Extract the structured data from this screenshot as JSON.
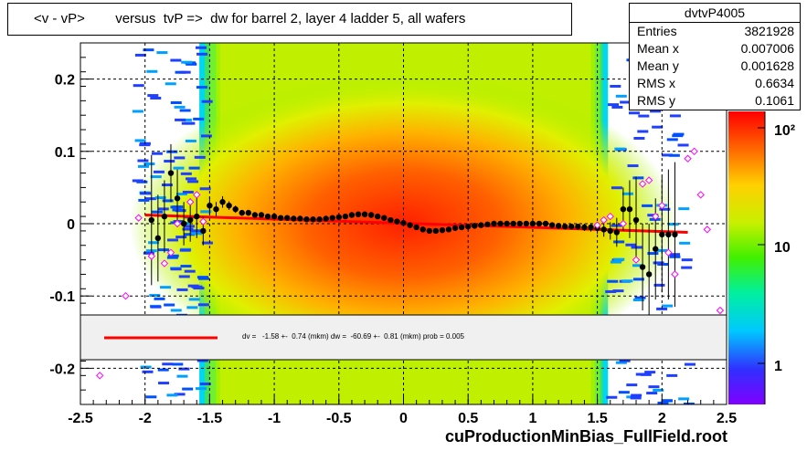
{
  "window": {
    "title": "<v - vP>        versus  tvP =>  dw for barrel 2, layer 4 ladder 5, all wafers",
    "footer": "cuProductionMinBias_FullField.root"
  },
  "stats": {
    "name": "dvtvP4005",
    "rows": [
      {
        "label": "Entries",
        "value": "3821928"
      },
      {
        "label": "Mean x",
        "value": "0.007006"
      },
      {
        "label": "Mean y",
        "value": "0.001628"
      },
      {
        "label": "RMS x",
        "value": "0.6634"
      },
      {
        "label": "RMS y",
        "value": "0.1061"
      }
    ]
  },
  "fit_legend": {
    "text": "dv =   -1.58 +-  0.74 (mkm) dw =  -60.69 +-  0.81 (mkm) prob = 0.005",
    "line_color": "#ff0000"
  },
  "chart_data": {
    "type": "heatmap",
    "title": "<v - vP>        versus  tvP =>  dw for barrel 2, layer 4 ladder 5, all wafers",
    "xlim": [
      -2.5,
      2.5
    ],
    "ylim": [
      -0.25,
      0.25
    ],
    "x_ticks": [
      "-2.5",
      "-2",
      "-1.5",
      "-1",
      "-0.5",
      "0",
      "0.5",
      "1",
      "1.5",
      "2",
      "2.5"
    ],
    "y_ticks": [
      "-0.2",
      "-0.1",
      "0",
      "0.1",
      "0.2"
    ],
    "z_scale": "log",
    "z_ticks": [
      "1",
      "10",
      "10²"
    ],
    "grid": true,
    "profile_black": {
      "x": [
        -1.95,
        -1.9,
        -1.85,
        -1.8,
        -1.75,
        -1.7,
        -1.65,
        -1.6,
        -1.55,
        -1.5,
        -1.45,
        -1.4,
        -1.35,
        -1.3,
        -1.25,
        -1.2,
        -1.15,
        -1.1,
        -1.05,
        -1.0,
        -0.95,
        -0.9,
        -0.85,
        -0.8,
        -0.75,
        -0.7,
        -0.65,
        -0.6,
        -0.55,
        -0.5,
        -0.45,
        -0.4,
        -0.35,
        -0.3,
        -0.25,
        -0.2,
        -0.15,
        -0.1,
        -0.05,
        0.0,
        0.05,
        0.1,
        0.15,
        0.2,
        0.25,
        0.3,
        0.35,
        0.4,
        0.45,
        0.5,
        0.55,
        0.6,
        0.65,
        0.7,
        0.75,
        0.8,
        0.85,
        0.9,
        0.95,
        1.0,
        1.05,
        1.1,
        1.15,
        1.2,
        1.25,
        1.3,
        1.35,
        1.4,
        1.45,
        1.5,
        1.55,
        1.6,
        1.65,
        1.7,
        1.75,
        1.8,
        1.85,
        1.9,
        1.95,
        2.0,
        2.05,
        2.1
      ],
      "y": [
        0.005,
        -0.02,
        0.01,
        0.07,
        0.035,
        0.0,
        0.005,
        0.01,
        -0.01,
        0.025,
        0.02,
        0.03,
        0.025,
        0.02,
        0.015,
        0.015,
        0.012,
        0.012,
        0.01,
        0.01,
        0.008,
        0.008,
        0.007,
        0.007,
        0.006,
        0.006,
        0.006,
        0.007,
        0.008,
        0.009,
        0.01,
        0.012,
        0.013,
        0.013,
        0.012,
        0.01,
        0.008,
        0.005,
        0.003,
        0.001,
        -0.002,
        -0.005,
        -0.008,
        -0.01,
        -0.01,
        -0.009,
        -0.008,
        -0.006,
        -0.005,
        -0.004,
        -0.003,
        -0.002,
        -0.001,
        0.0,
        0.0,
        0.0,
        0.0,
        0.0,
        0.0,
        0.0,
        0.0,
        0.0,
        -0.002,
        -0.003,
        -0.004,
        -0.004,
        -0.004,
        -0.005,
        -0.005,
        -0.006,
        -0.008,
        -0.01,
        -0.012,
        0.02,
        0.02,
        0.005,
        -0.06,
        -0.07,
        -0.035,
        -0.015,
        -0.015,
        -0.015
      ],
      "yerr": [
        0.09,
        0.06,
        0.05,
        0.04,
        0.04,
        0.03,
        0.03,
        0.03,
        0.02,
        0.012,
        0.01,
        0.008,
        0.006,
        0.005,
        0.004,
        0.004,
        0.003,
        0.003,
        0.003,
        0.003,
        0.002,
        0.002,
        0.002,
        0.002,
        0.002,
        0.002,
        0.002,
        0.002,
        0.002,
        0.002,
        0.002,
        0.002,
        0.002,
        0.002,
        0.002,
        0.002,
        0.002,
        0.002,
        0.002,
        0.002,
        0.002,
        0.002,
        0.002,
        0.002,
        0.002,
        0.002,
        0.002,
        0.002,
        0.002,
        0.002,
        0.002,
        0.002,
        0.002,
        0.002,
        0.002,
        0.002,
        0.002,
        0.002,
        0.002,
        0.002,
        0.002,
        0.002,
        0.002,
        0.003,
        0.003,
        0.003,
        0.004,
        0.005,
        0.006,
        0.008,
        0.01,
        0.012,
        0.02,
        0.03,
        0.04,
        0.06,
        0.06,
        0.07,
        0.07,
        0.08,
        0.09,
        0.1
      ]
    },
    "profile_magenta": {
      "x": [
        -2.35,
        -2.15,
        -2.05,
        -1.95,
        -1.85,
        -1.8,
        -1.75,
        -1.65,
        -1.6,
        -1.55,
        1.5,
        1.55,
        1.6,
        1.7,
        1.8,
        1.85,
        1.9,
        1.95,
        2.0,
        2.05,
        2.1,
        2.2,
        2.25,
        2.3,
        2.35,
        2.45
      ],
      "y": [
        -0.21,
        -0.1,
        0.008,
        -0.045,
        -0.055,
        -0.04,
        0.0,
        0.03,
        0.04,
        0.003,
        -0.002,
        0.005,
        0.01,
        0.0,
        -0.05,
        0.055,
        0.06,
        0.01,
        0.025,
        -0.04,
        -0.07,
        0.09,
        0.1,
        0.04,
        -0.008,
        -0.12
      ]
    },
    "fit_line": {
      "x": [
        -2.0,
        2.2
      ],
      "y": [
        0.012,
        -0.012
      ]
    }
  }
}
